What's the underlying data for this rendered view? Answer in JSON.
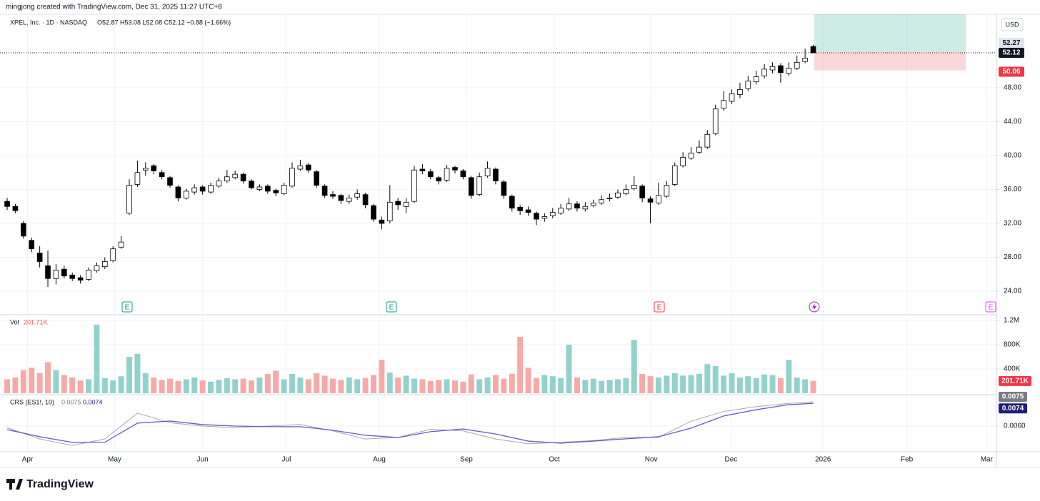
{
  "header": {
    "credit": "mingjong created with TradingView.com, Dec 31, 2025 11:27 UTC+8",
    "symbol": "XPEL, Inc. · 1D · NASDAQ",
    "ohlc": "O52.87 H53.08 L52.08 C52.12 −0.88 (−1.66%)",
    "currency": "USD",
    "earnings_markers": [
      "E",
      "E",
      "E",
      "E"
    ],
    "footer": "TradingView"
  },
  "chart_data": [
    {
      "type": "candlestick",
      "up_color": "#ffffff",
      "down_color": "#000000",
      "xlim": [
        -0.88,
        121.5
      ],
      "ylim": [
        21.31,
        56.67
      ],
      "yticks": [
        {
          "value": 24,
          "label": "24.00"
        },
        {
          "value": 28,
          "label": "28.00"
        },
        {
          "value": 32,
          "label": "32.00"
        },
        {
          "value": 36,
          "label": "36.00"
        },
        {
          "value": 40,
          "label": "40.00"
        },
        {
          "value": 44,
          "label": "44.00"
        },
        {
          "value": 48,
          "label": "48.00"
        }
      ],
      "position": {
        "entry": 52.27,
        "stop": 50.06
      },
      "open": [
        34.6,
        34.0,
        32.0,
        30.0,
        28.5,
        27.0,
        25.5,
        26.6,
        25.9,
        25.6,
        25.4,
        26.4,
        26.9,
        27.6,
        29.2,
        33.2,
        36.6,
        38.3,
        38.8,
        38.0,
        37.4,
        36.3,
        35.0,
        35.7,
        36.3,
        35.7,
        36.4,
        37.0,
        37.4,
        37.8,
        37.0,
        36.0,
        36.4,
        35.9,
        35.5,
        36.4,
        38.4,
        38.9,
        38.1,
        36.4,
        35.4,
        35.3,
        34.6,
        35.1,
        35.4,
        34.1,
        32.4,
        32.3,
        34.6,
        34.0,
        34.6,
        38.4,
        38.1,
        37.4,
        37.1,
        38.6,
        38.2,
        37.4,
        35.4,
        37.6,
        38.4,
        36.9,
        35.2,
        33.9,
        33.6,
        33.2,
        32.6,
        32.9,
        33.2,
        33.7,
        34.3,
        33.7,
        34.1,
        34.4,
        34.9,
        35.1,
        35.5,
        36.1,
        36.4,
        34.9,
        34.4,
        35.2,
        36.6,
        38.8,
        39.7,
        40.4,
        41.0,
        42.6,
        45.6,
        46.4,
        47.2,
        47.9,
        48.7,
        49.4,
        50.1,
        50.6,
        49.7,
        50.3,
        51.1,
        52.87
      ],
      "high": [
        35.0,
        34.3,
        32.3,
        30.3,
        29.3,
        28.8,
        27.2,
        27.0,
        26.2,
        25.9,
        26.8,
        27.4,
        28.0,
        29.3,
        30.5,
        37.2,
        39.4,
        39.2,
        39.0,
        38.3,
        37.6,
        36.5,
        36.1,
        36.6,
        36.5,
        36.8,
        37.4,
        38.3,
        38.2,
        38.0,
        37.2,
        36.6,
        36.6,
        36.1,
        36.8,
        39.2,
        39.5,
        39.1,
        38.3,
        36.6,
        35.8,
        35.5,
        35.4,
        36.0,
        35.6,
        34.3,
        32.8,
        36.5,
        35.0,
        35.0,
        38.8,
        39.0,
        38.4,
        37.6,
        38.9,
        38.8,
        38.4,
        37.6,
        38.0,
        39.3,
        38.6,
        37.1,
        35.4,
        34.2,
        34.0,
        33.4,
        33.2,
        33.8,
        34.3,
        35.0,
        34.6,
        34.5,
        34.8,
        35.3,
        35.5,
        36.0,
        36.6,
        37.6,
        36.6,
        35.2,
        36.8,
        37.0,
        39.2,
        40.4,
        41.0,
        41.8,
        43.0,
        46.0,
        47.6,
        47.8,
        48.6,
        49.4,
        50.0,
        50.8,
        51.0,
        50.9,
        51.0,
        51.8,
        52.6,
        53.08
      ],
      "low": [
        33.6,
        33.2,
        30.2,
        28.6,
        26.8,
        24.5,
        24.8,
        25.5,
        25.2,
        24.9,
        25.2,
        26.2,
        26.6,
        27.4,
        29.0,
        33.0,
        36.3,
        37.6,
        37.8,
        37.2,
        36.2,
        34.6,
        34.8,
        35.4,
        35.4,
        35.5,
        36.2,
        36.8,
        37.2,
        36.7,
        36.0,
        35.8,
        35.5,
        35.2,
        35.3,
        36.2,
        38.2,
        38.0,
        36.2,
        35.0,
        34.9,
        34.3,
        34.3,
        34.8,
        33.8,
        32.2,
        31.3,
        32.0,
        33.6,
        33.2,
        34.4,
        37.8,
        37.2,
        36.6,
        36.9,
        37.9,
        37.2,
        34.9,
        35.2,
        37.4,
        36.6,
        34.9,
        33.4,
        33.0,
        32.9,
        31.8,
        32.2,
        32.6,
        33.0,
        33.5,
        33.4,
        33.4,
        33.9,
        34.2,
        34.6,
        34.9,
        35.3,
        35.9,
        34.5,
        32.0,
        34.2,
        35.0,
        36.4,
        38.6,
        39.5,
        40.2,
        40.8,
        42.4,
        45.3,
        46.1,
        46.8,
        47.6,
        48.4,
        49.1,
        49.7,
        48.6,
        49.4,
        50.1,
        50.9,
        52.08
      ],
      "close": [
        34.0,
        33.5,
        30.5,
        29.0,
        27.5,
        25.5,
        26.5,
        25.8,
        25.5,
        25.3,
        26.5,
        27.0,
        27.5,
        29.0,
        29.8,
        36.5,
        38.0,
        38.5,
        38.2,
        37.5,
        36.5,
        35.0,
        35.8,
        36.2,
        35.8,
        36.5,
        37.0,
        37.5,
        37.8,
        37.0,
        36.2,
        36.3,
        35.8,
        35.6,
        36.5,
        38.5,
        38.8,
        38.3,
        36.5,
        35.3,
        35.2,
        34.7,
        35.0,
        35.5,
        34.2,
        32.5,
        32.0,
        34.5,
        34.2,
        34.5,
        38.3,
        38.2,
        37.5,
        37.0,
        38.5,
        38.3,
        37.5,
        35.3,
        37.5,
        38.5,
        37.0,
        35.3,
        33.8,
        33.5,
        33.3,
        32.5,
        32.8,
        33.3,
        33.8,
        34.3,
        33.8,
        34.0,
        34.4,
        34.8,
        35.0,
        35.6,
        36.0,
        36.5,
        35.0,
        34.5,
        35.3,
        36.5,
        38.8,
        39.8,
        40.3,
        41.0,
        42.5,
        45.5,
        46.5,
        47.3,
        47.8,
        48.8,
        49.3,
        50.2,
        50.5,
        49.8,
        50.3,
        51.0,
        51.5,
        52.12
      ]
    },
    {
      "type": "bar",
      "title": "Vol",
      "up_color": "#92d2cc",
      "down_color": "#f7a9a7",
      "ylim": [
        0,
        1247000
      ],
      "yticks": [
        {
          "value": 400000,
          "label": "400K"
        },
        {
          "value": 800000,
          "label": "800K"
        },
        {
          "value": 1200000,
          "label": "1.2M"
        }
      ],
      "last_value_label": "201.71K",
      "values": [
        230000,
        260000,
        380000,
        420000,
        330000,
        510000,
        380000,
        300000,
        260000,
        210000,
        230000,
        1130000,
        250000,
        210000,
        280000,
        600000,
        650000,
        330000,
        260000,
        220000,
        240000,
        200000,
        230000,
        260000,
        210000,
        190000,
        220000,
        250000,
        230000,
        240000,
        210000,
        260000,
        320000,
        370000,
        230000,
        320000,
        260000,
        230000,
        330000,
        290000,
        240000,
        220000,
        260000,
        230000,
        250000,
        300000,
        550000,
        340000,
        260000,
        290000,
        240000,
        230000,
        200000,
        220000,
        230000,
        210000,
        190000,
        310000,
        230000,
        260000,
        300000,
        240000,
        320000,
        930000,
        420000,
        250000,
        300000,
        280000,
        250000,
        800000,
        260000,
        220000,
        240000,
        200000,
        220000,
        230000,
        250000,
        880000,
        320000,
        280000,
        260000,
        290000,
        330000,
        290000,
        300000,
        320000,
        480000,
        450000,
        290000,
        330000,
        260000,
        280000,
        250000,
        310000,
        300000,
        250000,
        550000,
        260000,
        230000,
        201710
      ]
    },
    {
      "type": "line",
      "title": "CRS (ES1!, 10)",
      "ylim": [
        0.004456,
        0.00785
      ],
      "yticks": [
        {
          "value": 0.006,
          "label": "0.0060"
        }
      ],
      "xticks": [
        {
          "value": 2.5,
          "label": "Apr"
        },
        {
          "value": 13.2,
          "label": "May"
        },
        {
          "value": 24,
          "label": "Jun"
        },
        {
          "value": 34.3,
          "label": "Jul"
        },
        {
          "value": 45.7,
          "label": "Aug"
        },
        {
          "value": 56.4,
          "label": "Sep"
        },
        {
          "value": 67.2,
          "label": "Oct"
        },
        {
          "value": 79.1,
          "label": "Nov"
        },
        {
          "value": 88.9,
          "label": "Dec"
        },
        {
          "value": 100.2,
          "label": "2026"
        },
        {
          "value": 110.5,
          "label": "Feb"
        },
        {
          "value": 120.3,
          "label": "Mar"
        }
      ],
      "x": [
        0,
        4,
        8,
        12,
        16,
        20,
        24,
        28,
        32,
        36,
        40,
        44,
        48,
        52,
        56,
        60,
        64,
        68,
        72,
        76,
        80,
        84,
        88,
        92,
        96,
        99
      ],
      "series": [
        {
          "color": "#a8a8a8",
          "tag_color": "#787b86",
          "values": [
            0.0059,
            0.0052,
            0.0048,
            0.0052,
            0.0068,
            0.0062,
            0.006,
            0.0059,
            0.006,
            0.0061,
            0.0057,
            0.0052,
            0.0053,
            0.0058,
            0.0057,
            0.0052,
            0.0049,
            0.005,
            0.0051,
            0.0053,
            0.0053,
            0.0063,
            0.0069,
            0.0072,
            0.0074,
            0.0075
          ]
        },
        {
          "color": "#5b5fc7",
          "tag_color": "#1e1e7a",
          "values": [
            0.00578,
            0.00534,
            0.00499,
            0.005,
            0.00618,
            0.00631,
            0.00609,
            0.006,
            0.00596,
            0.00596,
            0.00574,
            0.00543,
            0.00529,
            0.00565,
            0.00582,
            0.00551,
            0.00507,
            0.00494,
            0.00507,
            0.00521,
            0.00534,
            0.00587,
            0.00662,
            0.00701,
            0.00732,
            0.0074
          ]
        }
      ]
    }
  ]
}
